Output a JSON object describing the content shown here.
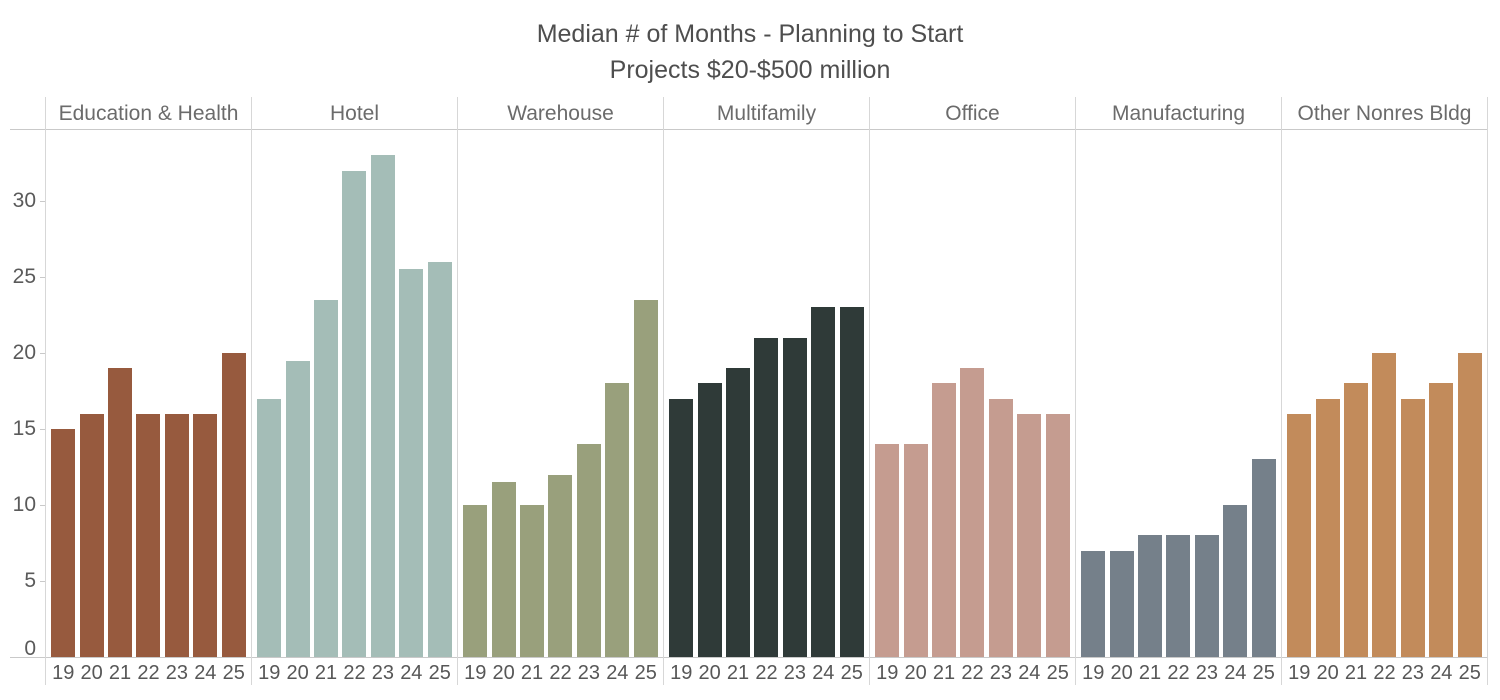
{
  "chart_data": {
    "type": "bar",
    "title": "Median # of Months - Planning to Start",
    "subtitle": "Projects $20-$500 million",
    "xlabel": "",
    "ylabel": "",
    "categories": [
      "19",
      "20",
      "21",
      "22",
      "23",
      "24",
      "25"
    ],
    "y_ticks": [
      0,
      5,
      10,
      15,
      20,
      25,
      30
    ],
    "ylim": [
      0,
      34.7
    ],
    "grid": false,
    "legend_position": "none",
    "series": [
      {
        "name": "Education & Health",
        "color": "#975a3e",
        "values": [
          15,
          16,
          19,
          16,
          16,
          16,
          20
        ]
      },
      {
        "name": "Hotel",
        "color": "#a4bdb7",
        "values": [
          17,
          19.5,
          23.5,
          32,
          33,
          25.5,
          26
        ]
      },
      {
        "name": "Warehouse",
        "color": "#99a07c",
        "values": [
          10,
          11.5,
          10,
          12,
          14,
          18,
          23.5
        ]
      },
      {
        "name": "Multifamily",
        "color": "#2f3a38",
        "values": [
          17,
          18,
          19,
          21,
          21,
          23,
          23
        ]
      },
      {
        "name": "Office",
        "color": "#c59c90",
        "values": [
          14,
          14,
          18,
          19,
          17,
          16,
          16
        ]
      },
      {
        "name": "Manufacturing",
        "color": "#75808a",
        "values": [
          7,
          7,
          8,
          8,
          8,
          10,
          13
        ]
      },
      {
        "name": "Other Nonres Bldg",
        "color": "#c28b5b",
        "values": [
          16,
          17,
          18,
          20,
          17,
          18,
          20
        ]
      }
    ],
    "colors": {
      "background": "#ffffff",
      "title_text": "#4e4e4e",
      "header_text": "#6b6b6b",
      "axis_text": "#5a5a5a",
      "grid_line": "#c9c9c9",
      "panel_divider": "#d7d7d7"
    }
  }
}
